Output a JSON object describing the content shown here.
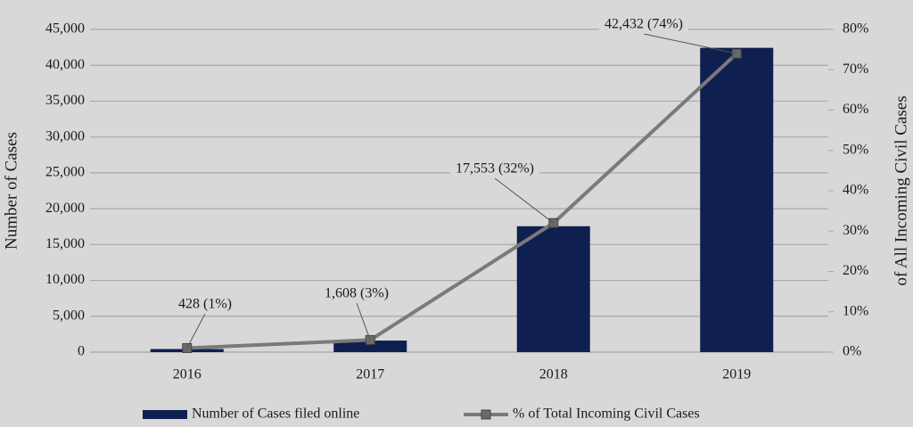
{
  "chart_data": {
    "type": "bar-line",
    "categories": [
      "2016",
      "2017",
      "2018",
      "2019"
    ],
    "series": [
      {
        "name": "Number of Cases filed online",
        "type": "bar",
        "color": "#0f1f4f",
        "values": [
          428,
          1608,
          17553,
          42432
        ]
      },
      {
        "name": "% of Total Incoming Civil Cases",
        "type": "line",
        "axis": "y2",
        "color": "#7a7a7a",
        "values": [
          1,
          3,
          32,
          74
        ]
      }
    ],
    "annotations": [
      "428 (1%)",
      "1,608 (3%)",
      "17,553 (32%)",
      "42,432 (74%)"
    ],
    "y_label": "Number of Cases",
    "y2_label": "of All Incoming Civil Cases",
    "ylim": [
      0,
      45000
    ],
    "yticks": [
      0,
      {
        "value": 5000,
        "label": "5,000"
      },
      {
        "value": 10000,
        "label": "10,000"
      },
      {
        "value": 15000,
        "label": "15,000"
      },
      {
        "value": 20000,
        "label": "20,000"
      },
      {
        "value": 25000,
        "label": "25,000"
      },
      {
        "value": 30000,
        "label": "30,000"
      },
      {
        "value": 35000,
        "label": "35,000"
      },
      {
        "value": 40000,
        "label": "40,000"
      },
      {
        "value": 45000,
        "label": "45,000"
      }
    ],
    "y2lim": [
      0,
      80
    ],
    "y2ticks": [
      {
        "value": 0,
        "label": "0%"
      },
      {
        "value": 10,
        "label": "10%"
      },
      {
        "value": 20,
        "label": "20%"
      },
      {
        "value": 30,
        "label": "30%"
      },
      {
        "value": 40,
        "label": "40%"
      },
      {
        "value": 50,
        "label": "50%"
      },
      {
        "value": 60,
        "label": "60%"
      },
      {
        "value": 70,
        "label": "70%"
      },
      {
        "value": 80,
        "label": "80%"
      }
    ],
    "grid": true,
    "legend": "bottom"
  }
}
